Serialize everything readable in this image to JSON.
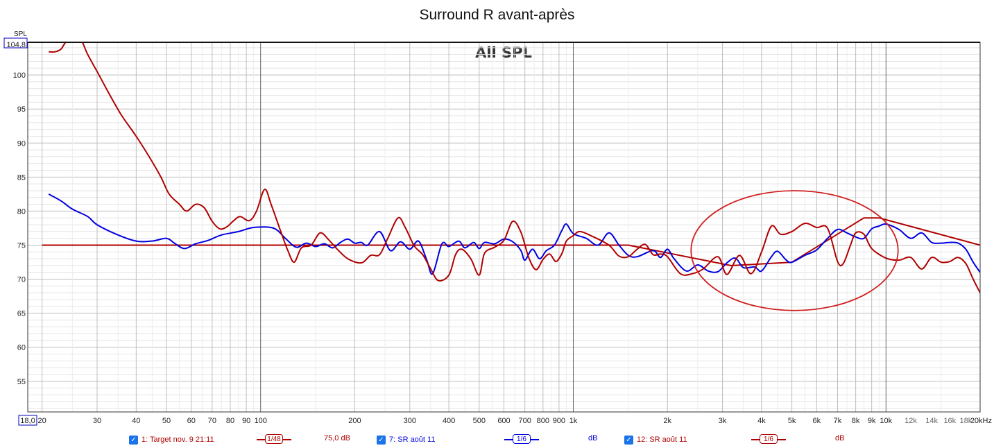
{
  "title": "Surround R avant-après",
  "chart_data": {
    "type": "line",
    "title": "Surround R avant-après",
    "plot_label": "All SPL",
    "ylabel": "SPL",
    "xlabel_unit": "Hz",
    "x_scale": "log",
    "xlim": [
      18,
      20000
    ],
    "ylim": [
      50.5,
      104.8
    ],
    "y_max_label": "104,8",
    "x_min_label": "18,0",
    "y_ticks": [
      55,
      60,
      65,
      70,
      75,
      80,
      85,
      90,
      95,
      100
    ],
    "x_major_ticks": [
      {
        "value": 20,
        "label": "20"
      },
      {
        "value": 30,
        "label": "30"
      },
      {
        "value": 40,
        "label": "40"
      },
      {
        "value": 50,
        "label": "50"
      },
      {
        "value": 60,
        "label": "60"
      },
      {
        "value": 70,
        "label": "70"
      },
      {
        "value": 80,
        "label": "80"
      },
      {
        "value": 90,
        "label": "90"
      },
      {
        "value": 100,
        "label": "100"
      },
      {
        "value": 200,
        "label": "200"
      },
      {
        "value": 300,
        "label": "300"
      },
      {
        "value": 400,
        "label": "400"
      },
      {
        "value": 500,
        "label": "500"
      },
      {
        "value": 600,
        "label": "600"
      },
      {
        "value": 700,
        "label": "700"
      },
      {
        "value": 800,
        "label": "800"
      },
      {
        "value": 900,
        "label": "900"
      },
      {
        "value": 1000,
        "label": "1k"
      },
      {
        "value": 2000,
        "label": "2k"
      },
      {
        "value": 3000,
        "label": "3k"
      },
      {
        "value": 4000,
        "label": "4k"
      },
      {
        "value": 5000,
        "label": "5k"
      },
      {
        "value": 6000,
        "label": "6k"
      },
      {
        "value": 7000,
        "label": "7k"
      },
      {
        "value": 8000,
        "label": "8k"
      },
      {
        "value": 9000,
        "label": "9k"
      },
      {
        "value": 10000,
        "label": "10k"
      },
      {
        "value": 20000,
        "label": "20kHz"
      }
    ],
    "x_minor_labels": [
      {
        "value": 12000,
        "label": "12k"
      },
      {
        "value": 14000,
        "label": "14k"
      },
      {
        "value": 16000,
        "label": "16k"
      },
      {
        "value": 18000,
        "label": "18k"
      }
    ],
    "series": [
      {
        "name": "Target nov. 9 21:11",
        "color": "#b00000",
        "points": [
          [
            20,
            75
          ],
          [
            1500,
            75
          ],
          [
            3200,
            72
          ],
          [
            5000,
            72.5
          ],
          [
            8500,
            79
          ],
          [
            9500,
            79
          ],
          [
            20000,
            75
          ]
        ]
      },
      {
        "name": "SR août 11",
        "color": "#0000e0",
        "points": [
          [
            21,
            82.5
          ],
          [
            23,
            81.5
          ],
          [
            25,
            80.3
          ],
          [
            28,
            79.2
          ],
          [
            30,
            78
          ],
          [
            35,
            76.5
          ],
          [
            40,
            75.6
          ],
          [
            45,
            75.6
          ],
          [
            50,
            76
          ],
          [
            53,
            75.3
          ],
          [
            57,
            74.5
          ],
          [
            62,
            75.2
          ],
          [
            68,
            75.7
          ],
          [
            75,
            76.5
          ],
          [
            85,
            77
          ],
          [
            95,
            77.6
          ],
          [
            110,
            77.5
          ],
          [
            120,
            76
          ],
          [
            130,
            74.7
          ],
          [
            140,
            75.3
          ],
          [
            150,
            74.8
          ],
          [
            160,
            75.2
          ],
          [
            170,
            74.6
          ],
          [
            180,
            75.4
          ],
          [
            190,
            75.9
          ],
          [
            200,
            75.3
          ],
          [
            210,
            75.4
          ],
          [
            220,
            75
          ],
          [
            240,
            77
          ],
          [
            260,
            74.2
          ],
          [
            280,
            75.5
          ],
          [
            300,
            74.4
          ],
          [
            320,
            75.6
          ],
          [
            340,
            72.8
          ],
          [
            355,
            70.8
          ],
          [
            380,
            75.2
          ],
          [
            400,
            74.8
          ],
          [
            430,
            75.6
          ],
          [
            450,
            74.6
          ],
          [
            480,
            75.4
          ],
          [
            500,
            74.5
          ],
          [
            520,
            75.4
          ],
          [
            560,
            75.2
          ],
          [
            600,
            75.9
          ],
          [
            640,
            75.5
          ],
          [
            680,
            74.2
          ],
          [
            700,
            72.8
          ],
          [
            740,
            74.4
          ],
          [
            780,
            73
          ],
          [
            820,
            74.2
          ],
          [
            870,
            75
          ],
          [
            920,
            77.2
          ],
          [
            950,
            78.1
          ],
          [
            1000,
            76.7
          ],
          [
            1100,
            76
          ],
          [
            1200,
            75
          ],
          [
            1300,
            76.8
          ],
          [
            1400,
            75
          ],
          [
            1500,
            73.5
          ],
          [
            1600,
            73.3
          ],
          [
            1800,
            74.2
          ],
          [
            1900,
            73.2
          ],
          [
            2000,
            74.4
          ],
          [
            2100,
            73
          ],
          [
            2300,
            71.2
          ],
          [
            2500,
            72.1
          ],
          [
            2700,
            71.2
          ],
          [
            2900,
            71.1
          ],
          [
            3100,
            72.4
          ],
          [
            3300,
            73.1
          ],
          [
            3500,
            71.7
          ],
          [
            3800,
            71.8
          ],
          [
            4000,
            71.2
          ],
          [
            4300,
            73.3
          ],
          [
            4500,
            74.1
          ],
          [
            4800,
            72.8
          ],
          [
            5000,
            72.5
          ],
          [
            5500,
            73.5
          ],
          [
            6000,
            74.3
          ],
          [
            6500,
            76
          ],
          [
            7000,
            77.3
          ],
          [
            7500,
            76.8
          ],
          [
            8000,
            76.2
          ],
          [
            8500,
            76
          ],
          [
            9000,
            77.4
          ],
          [
            9500,
            77.8
          ],
          [
            10000,
            78.1
          ],
          [
            11000,
            77.3
          ],
          [
            12000,
            76
          ],
          [
            13000,
            76.8
          ],
          [
            14000,
            75.4
          ],
          [
            15000,
            75.3
          ],
          [
            16000,
            75.4
          ],
          [
            17000,
            75.3
          ],
          [
            18000,
            74.4
          ],
          [
            19000,
            72.5
          ],
          [
            20000,
            71
          ]
        ]
      },
      {
        "name": "SR août 11",
        "color": "#b00000",
        "points": [
          [
            21,
            103.4
          ],
          [
            22,
            103.4
          ],
          [
            23,
            103.8
          ],
          [
            24,
            105
          ],
          [
            26,
            106
          ],
          [
            28,
            103
          ],
          [
            30,
            100.5
          ],
          [
            33,
            97
          ],
          [
            36,
            94
          ],
          [
            40,
            91
          ],
          [
            44,
            88
          ],
          [
            48,
            85
          ],
          [
            51,
            82.5
          ],
          [
            55,
            81
          ],
          [
            58,
            80
          ],
          [
            62,
            81
          ],
          [
            66,
            80.5
          ],
          [
            70,
            78.5
          ],
          [
            74,
            77.4
          ],
          [
            78,
            77.7
          ],
          [
            82,
            78.6
          ],
          [
            86,
            79.2
          ],
          [
            92,
            78.6
          ],
          [
            97,
            80
          ],
          [
            103,
            83.2
          ],
          [
            108,
            81
          ],
          [
            116,
            77
          ],
          [
            122,
            74.3
          ],
          [
            128,
            72.5
          ],
          [
            135,
            74.6
          ],
          [
            145,
            75
          ],
          [
            155,
            76.8
          ],
          [
            165,
            75.8
          ],
          [
            175,
            74.5
          ],
          [
            190,
            73
          ],
          [
            210,
            72.4
          ],
          [
            225,
            73.5
          ],
          [
            240,
            73.6
          ],
          [
            255,
            76
          ],
          [
            275,
            79
          ],
          [
            290,
            77.6
          ],
          [
            310,
            74.9
          ],
          [
            330,
            73.6
          ],
          [
            350,
            71.5
          ],
          [
            370,
            69.8
          ],
          [
            400,
            70.6
          ],
          [
            420,
            73.6
          ],
          [
            440,
            74.4
          ],
          [
            470,
            73
          ],
          [
            500,
            70.6
          ],
          [
            520,
            73.8
          ],
          [
            560,
            74.7
          ],
          [
            600,
            75.7
          ],
          [
            640,
            78.5
          ],
          [
            680,
            76.9
          ],
          [
            720,
            73.2
          ],
          [
            760,
            71.4
          ],
          [
            800,
            72.9
          ],
          [
            840,
            73.7
          ],
          [
            880,
            72.6
          ],
          [
            920,
            73.8
          ],
          [
            950,
            75.6
          ],
          [
            1000,
            76.4
          ],
          [
            1050,
            77
          ],
          [
            1150,
            76.3
          ],
          [
            1300,
            75
          ],
          [
            1400,
            73.4
          ],
          [
            1500,
            73.3
          ],
          [
            1600,
            74.4
          ],
          [
            1700,
            75.1
          ],
          [
            1800,
            73.6
          ],
          [
            1900,
            73.7
          ],
          [
            2000,
            73.3
          ],
          [
            2200,
            70.8
          ],
          [
            2400,
            70.8
          ],
          [
            2600,
            71.5
          ],
          [
            2900,
            73.3
          ],
          [
            3100,
            70.7
          ],
          [
            3400,
            73.5
          ],
          [
            3700,
            70.8
          ],
          [
            4000,
            74
          ],
          [
            4300,
            77.8
          ],
          [
            4600,
            76.6
          ],
          [
            5000,
            77
          ],
          [
            5500,
            78.2
          ],
          [
            6000,
            77.6
          ],
          [
            6500,
            77.5
          ],
          [
            7000,
            72.6
          ],
          [
            7300,
            72.3
          ],
          [
            7700,
            75
          ],
          [
            8000,
            76.8
          ],
          [
            8500,
            76.6
          ],
          [
            9000,
            74.5
          ],
          [
            10000,
            73.1
          ],
          [
            11000,
            72.8
          ],
          [
            12000,
            73.2
          ],
          [
            13000,
            71.5
          ],
          [
            14000,
            73.2
          ],
          [
            15000,
            72.5
          ],
          [
            16000,
            72.6
          ],
          [
            17000,
            73.2
          ],
          [
            18000,
            72.3
          ],
          [
            19000,
            70
          ],
          [
            20000,
            68
          ]
        ]
      }
    ],
    "annotation": {
      "type": "ellipse",
      "center_hz": 5100,
      "center_db": 74.2,
      "half_width_decades": 0.331,
      "half_height_db": 8.8,
      "color": "#d02020"
    },
    "legend": [
      {
        "label": "1: Target nov. 9 21:11",
        "checked": true,
        "smoothing": "1/48",
        "value": "75,0 dB",
        "color": "#b00000"
      },
      {
        "label": "7: SR août 11",
        "checked": true,
        "smoothing": "1/6",
        "value": "dB",
        "color": "#0000e0"
      },
      {
        "label": "12: SR août 11",
        "checked": true,
        "smoothing": "1/6",
        "value": "dB",
        "color": "#b00000"
      }
    ]
  }
}
